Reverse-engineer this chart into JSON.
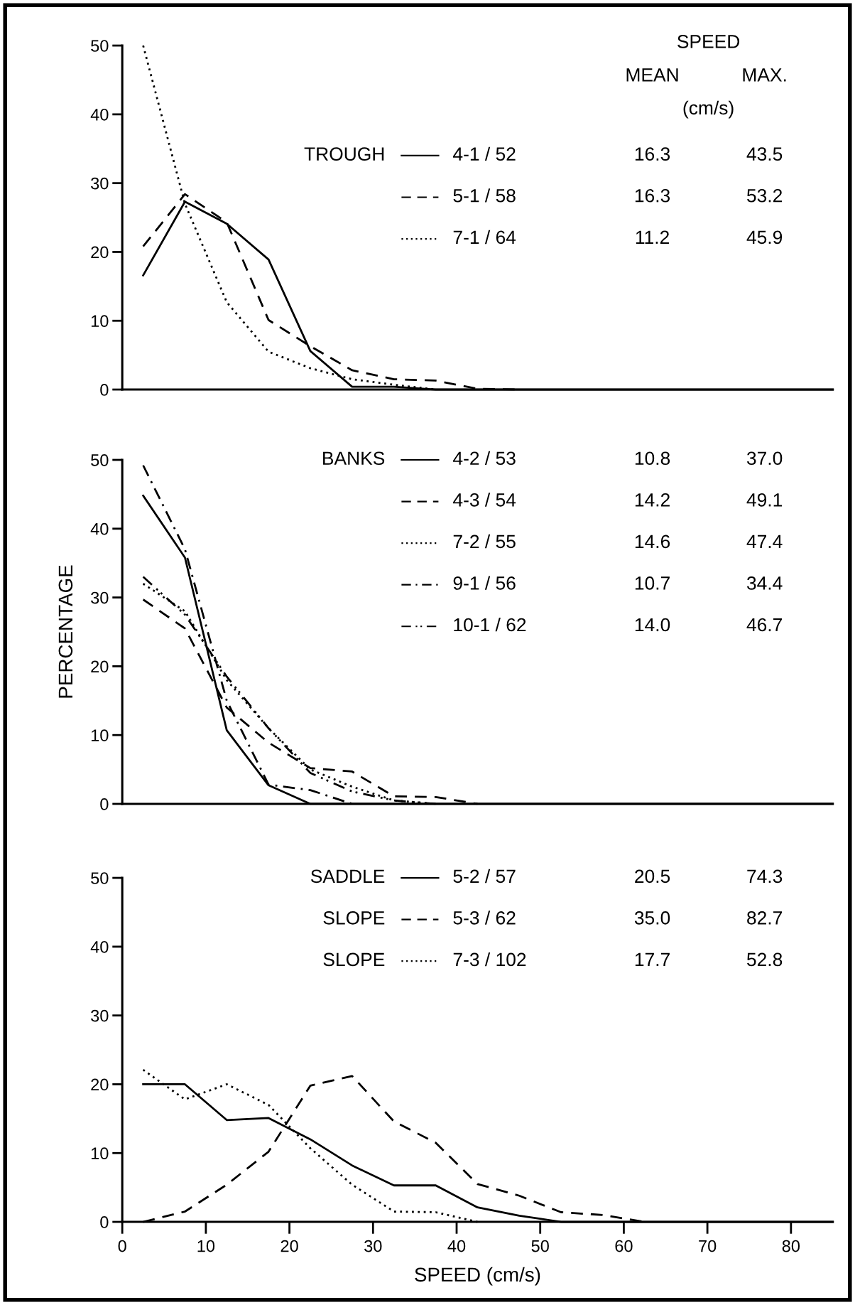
{
  "chart_data": [
    {
      "type": "line",
      "legend": "top right",
      "tick_labels": "y",
      "xlim": [
        0,
        85
      ],
      "ylim": [
        0,
        50
      ],
      "yticks": [
        0,
        10,
        20,
        30,
        40,
        50
      ],
      "annotations": [
        "SPEED",
        "MEAN",
        "MAX.",
        "(cm/s)",
        "TROUGH",
        "16.3",
        "43.5",
        "16.3",
        "53.2",
        "11.2",
        "45.9"
      ],
      "series": [
        {
          "name": "4-1 / 52",
          "color": "#000000",
          "line_style": "solid",
          "x": [
            2.5,
            7.5,
            12.5,
            17.5,
            22.5,
            27.5,
            32.5,
            37.5,
            85
          ],
          "values": [
            16.6,
            27.3,
            24.1,
            18.9,
            5.6,
            0.4,
            0.4,
            0,
            0
          ]
        },
        {
          "name": "5-1 / 58",
          "color": "#000000",
          "line_style": "dashed",
          "x": [
            2.5,
            7.5,
            12.5,
            17.5,
            22.5,
            27.5,
            32.5,
            37.5,
            42.5,
            47.5
          ],
          "values": [
            20.8,
            28.4,
            24.3,
            10.1,
            6.3,
            2.8,
            1.5,
            1.3,
            0.1,
            0
          ]
        },
        {
          "name": "7-1 / 64",
          "color": "#000000",
          "line_style": "dotted",
          "x": [
            2.5,
            7.5,
            12.5,
            17.5,
            22.5,
            27.5,
            32.5,
            37.5
          ],
          "values": [
            50,
            27,
            12.7,
            5.5,
            3.1,
            1.5,
            0.7,
            0
          ]
        }
      ]
    },
    {
      "type": "line",
      "legend": "top right",
      "tick_labels": "y",
      "xlim": [
        0,
        85
      ],
      "ylim": [
        0,
        50
      ],
      "yticks": [
        0,
        10,
        20,
        30,
        40,
        50
      ],
      "ylabel": "PERCENTAGE",
      "annotations": [
        "BANKS",
        "10.8",
        "37.0",
        "14.2",
        "49.1",
        "14.6",
        "47.4",
        "10.7",
        "34.4",
        "14.0",
        "46.7"
      ],
      "series": [
        {
          "name": "4-2 / 53",
          "color": "#000000",
          "line_style": "solid",
          "x": [
            2.5,
            7.5,
            12.5,
            17.5,
            22.5,
            85
          ],
          "values": [
            44.8,
            35.8,
            10.7,
            2.7,
            0,
            0
          ]
        },
        {
          "name": "4-3 / 54",
          "color": "#000000",
          "line_style": "dashed",
          "x": [
            2.5,
            7.5,
            12.5,
            17.5,
            22.5,
            27.5,
            32.5,
            37.5,
            42.5
          ],
          "values": [
            29.7,
            25.5,
            14,
            8.9,
            5.2,
            4.7,
            1.1,
            1,
            0
          ]
        },
        {
          "name": "7-2 / 55",
          "color": "#000000",
          "line_style": "dotted",
          "x": [
            2.5,
            7.5,
            12.5,
            17.5,
            22.5,
            27.5,
            32.5,
            37.5
          ],
          "values": [
            32,
            28,
            18,
            11,
            5,
            2.5,
            0.5,
            0
          ]
        },
        {
          "name": "9-1 / 56",
          "color": "#000000",
          "line_style": "dashdot",
          "x": [
            2.5,
            7.5,
            12.5,
            17.5,
            22.5,
            27.5
          ],
          "values": [
            49.2,
            37,
            15,
            2.8,
            2,
            0
          ]
        },
        {
          "name": "10-1 / 62",
          "color": "#000000",
          "line_style": "dashdotdot",
          "x": [
            2.5,
            7.5,
            12.5,
            17.5,
            22.5,
            27.5,
            32.5,
            37.5
          ],
          "values": [
            33,
            27.5,
            18.5,
            11,
            4.5,
            1.8,
            0.5,
            0
          ]
        }
      ]
    },
    {
      "type": "line",
      "legend": "top right",
      "xlim": [
        0,
        85
      ],
      "ylim": [
        0,
        50
      ],
      "yticks": [
        0,
        10,
        20,
        30,
        40,
        50
      ],
      "xlabel": "SPEED (cm/s)",
      "xticks": [
        0,
        10,
        20,
        30,
        40,
        50,
        60,
        70,
        80
      ],
      "annotations": [
        "SADDLE",
        "SLOPE",
        "SLOPE",
        "20.5",
        "74.3",
        "35.0",
        "82.7",
        "17.7",
        "52.8"
      ],
      "series": [
        {
          "name": "5-2 / 57",
          "color": "#000000",
          "line_style": "solid",
          "x": [
            2.5,
            7.5,
            12.5,
            17.5,
            22.5,
            27.5,
            32.5,
            37.5,
            42.5,
            47.5,
            52.5,
            85
          ],
          "values": [
            20,
            20,
            14.8,
            15.1,
            12,
            8.2,
            5.3,
            5.3,
            2.1,
            0.9,
            0,
            0
          ]
        },
        {
          "name": "5-3 / 62",
          "color": "#000000",
          "line_style": "dashed",
          "x": [
            2.5,
            7.5,
            12.5,
            17.5,
            22.5,
            27.5,
            32.5,
            37.5,
            42.5,
            47.5,
            52.5,
            57.5,
            62.5
          ],
          "values": [
            0,
            1.5,
            5.4,
            10.2,
            19.8,
            21.2,
            14.6,
            11.5,
            5.5,
            3.8,
            1.4,
            1,
            0
          ]
        },
        {
          "name": "7-3 / 102",
          "color": "#000000",
          "line_style": "dotted",
          "x": [
            2.5,
            7.5,
            12.5,
            17.5,
            22.5,
            27.5,
            32.5,
            37.5,
            42.5
          ],
          "values": [
            22.1,
            17.8,
            20,
            17,
            10.7,
            5.4,
            1.5,
            1.4,
            0
          ]
        }
      ]
    }
  ]
}
